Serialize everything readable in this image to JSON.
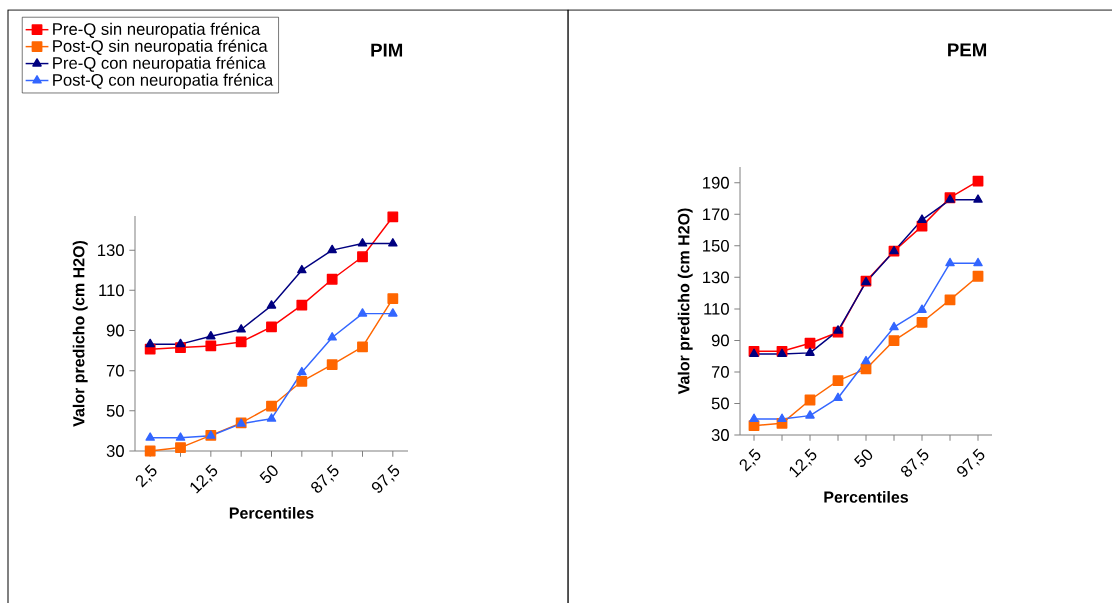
{
  "chart_data": [
    {
      "type": "line",
      "title": "PIM",
      "xlabel": "Percentiles",
      "ylabel": "Valor predicho (cm H2O)",
      "legend": "top left",
      "categories": [
        "2,5",
        null,
        "12,5",
        null,
        "50",
        null,
        "87,5",
        null,
        "97,5"
      ],
      "ylim": [
        30,
        147
      ],
      "yticks": [
        30,
        50,
        70,
        90,
        110,
        130
      ],
      "series": [
        {
          "name": "Pre-Q sin neuropatia frénica",
          "color": "#ff0000",
          "marker": "square",
          "values": [
            80.7,
            81.5,
            82.3,
            84.3,
            91.8,
            102.6,
            115.5,
            126.7,
            146.6
          ]
        },
        {
          "name": "Post-Q sin neuropatia frénica",
          "color": "#ff6600",
          "marker": "square",
          "values": [
            30,
            31.7,
            37.8,
            44,
            52.3,
            64.7,
            73,
            81.8,
            105.9
          ]
        },
        {
          "name": "Pre-Q con neuropatia frénica",
          "color": "#000080",
          "marker": "triangle",
          "values": [
            83.2,
            83.2,
            87.1,
            90.5,
            102.4,
            120,
            130,
            133.3,
            133.3
          ]
        },
        {
          "name": "Post-Q con neuropatia frénica",
          "color": "#3366ff",
          "marker": "triangle",
          "values": [
            36.6,
            36.6,
            37.6,
            43.6,
            46.1,
            69.2,
            86.5,
            98.4,
            98.4
          ]
        }
      ]
    },
    {
      "type": "line",
      "title": "PEM",
      "xlabel": "Percentiles",
      "ylabel": "Valor predicho (cm H2O)",
      "categories": [
        "2,5",
        null,
        "12,5",
        null,
        "50",
        null,
        "87,5",
        null,
        "97,5"
      ],
      "ylim": [
        30,
        200
      ],
      "yticks": [
        30,
        50,
        70,
        90,
        110,
        130,
        150,
        170,
        190
      ],
      "series": [
        {
          "color": "#ff0000",
          "marker": "square",
          "values": [
            83.1,
            83.1,
            88.2,
            95.2,
            127.6,
            146.6,
            162.5,
            180.5,
            191
          ]
        },
        {
          "color": "#ff6600",
          "marker": "square",
          "values": [
            35.9,
            37.4,
            52.2,
            64.5,
            71.9,
            89.9,
            101.5,
            115.7,
            130.7
          ]
        },
        {
          "color": "#000080",
          "marker": "triangle",
          "values": [
            81.4,
            81.4,
            82.1,
            96.2,
            126.9,
            146.6,
            166.5,
            179.2,
            179.2
          ]
        },
        {
          "color": "#3366ff",
          "marker": "triangle",
          "values": [
            40.2,
            40.2,
            42.3,
            53.5,
            76.8,
            98.4,
            109.4,
            139,
            139
          ]
        }
      ]
    }
  ]
}
